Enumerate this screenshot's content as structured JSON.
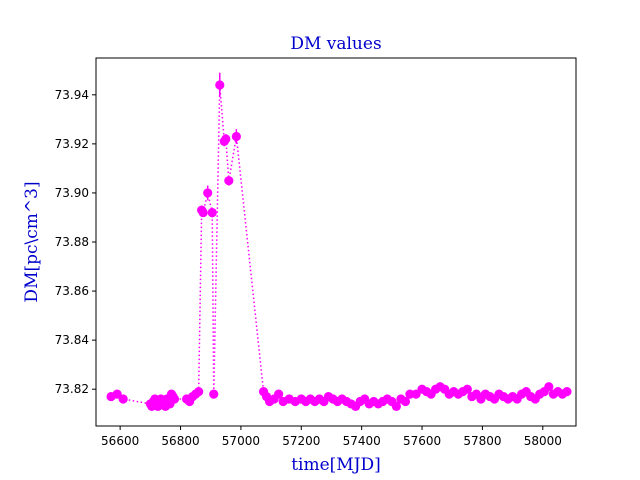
{
  "chart_data": {
    "type": "scatter",
    "title": "DM values",
    "xlabel": "time[MJD]",
    "ylabel": "DM[pc\\cm^3]",
    "xlim": [
      56520,
      58110
    ],
    "ylim": [
      73.805,
      73.955
    ],
    "xticks": [
      56600,
      56800,
      57000,
      57200,
      57400,
      57600,
      57800,
      58000
    ],
    "yticks": [
      73.82,
      73.84,
      73.86,
      73.88,
      73.9,
      73.92,
      73.94
    ],
    "ytick_labels": [
      "73.82",
      "73.84",
      "73.86",
      "73.88",
      "73.90",
      "73.92",
      "73.94"
    ],
    "grid": false,
    "line_style": "dotted",
    "colors": {
      "series": "#ff00ff",
      "title": "#0000cc",
      "axis_label": "#0000cc",
      "axes": "#000000"
    },
    "series": [
      {
        "x": [
          56570,
          56590,
          56610,
          56700,
          56705,
          56710,
          56715,
          56720,
          56725,
          56730,
          56735,
          56740,
          56745,
          56750,
          56755,
          56760,
          56765,
          56770,
          56775,
          56780,
          56820,
          56830,
          56840,
          56850,
          56860,
          56870,
          56875,
          56890,
          56905,
          56910,
          56930,
          56945,
          56950,
          56960,
          56985,
          57075,
          57085,
          57095,
          57110,
          57125,
          57140,
          57160,
          57180,
          57200,
          57215,
          57230,
          57245,
          57260,
          57275,
          57290,
          57305,
          57320,
          57335,
          57350,
          57365,
          57380,
          57395,
          57410,
          57425,
          57440,
          57455,
          57470,
          57485,
          57500,
          57515,
          57530,
          57545,
          57560,
          57580,
          57600,
          57615,
          57630,
          57645,
          57660,
          57675,
          57690,
          57705,
          57720,
          57735,
          57750,
          57765,
          57780,
          57795,
          57810,
          57825,
          57840,
          57855,
          57870,
          57885,
          57900,
          57915,
          57930,
          57945,
          57960,
          57975,
          57990,
          58005,
          58020,
          58035,
          58050,
          58065,
          58080
        ],
        "y": [
          73.817,
          73.818,
          73.816,
          73.814,
          73.813,
          73.815,
          73.816,
          73.814,
          73.813,
          73.815,
          73.816,
          73.814,
          73.815,
          73.813,
          73.816,
          73.815,
          73.814,
          73.818,
          73.817,
          73.816,
          73.816,
          73.815,
          73.817,
          73.818,
          73.819,
          73.893,
          73.892,
          73.9,
          73.892,
          73.818,
          73.944,
          73.921,
          73.922,
          73.905,
          73.923,
          73.819,
          73.817,
          73.815,
          73.816,
          73.818,
          73.815,
          73.816,
          73.815,
          73.816,
          73.815,
          73.816,
          73.815,
          73.816,
          73.815,
          73.817,
          73.816,
          73.815,
          73.816,
          73.815,
          73.814,
          73.813,
          73.815,
          73.816,
          73.814,
          73.815,
          73.814,
          73.815,
          73.816,
          73.815,
          73.813,
          73.816,
          73.815,
          73.818,
          73.818,
          73.82,
          73.819,
          73.818,
          73.82,
          73.821,
          73.82,
          73.818,
          73.819,
          73.818,
          73.819,
          73.82,
          73.817,
          73.818,
          73.816,
          73.818,
          73.817,
          73.816,
          73.818,
          73.817,
          73.816,
          73.817,
          73.816,
          73.818,
          73.819,
          73.817,
          73.816,
          73.818,
          73.819,
          73.821,
          73.818,
          73.819,
          73.818,
          73.819
        ],
        "yerr": [
          0.001,
          0.001,
          0.001,
          0.001,
          0.001,
          0.001,
          0.001,
          0.001,
          0.001,
          0.001,
          0.001,
          0.001,
          0.001,
          0.001,
          0.001,
          0.001,
          0.001,
          0.001,
          0.001,
          0.001,
          0.001,
          0.001,
          0.001,
          0.001,
          0.001,
          0.001,
          0.001,
          0.003,
          0.002,
          0.001,
          0.005,
          0.002,
          0.002,
          0.002,
          0.003,
          0.001,
          0.001,
          0.001,
          0.001,
          0.001,
          0.001,
          0.001,
          0.001,
          0.001,
          0.001,
          0.001,
          0.001,
          0.001,
          0.001,
          0.001,
          0.001,
          0.001,
          0.001,
          0.001,
          0.001,
          0.001,
          0.001,
          0.001,
          0.001,
          0.001,
          0.001,
          0.001,
          0.001,
          0.001,
          0.001,
          0.001,
          0.001,
          0.001,
          0.001,
          0.001,
          0.001,
          0.001,
          0.001,
          0.001,
          0.001,
          0.001,
          0.001,
          0.001,
          0.001,
          0.001,
          0.001,
          0.001,
          0.001,
          0.001,
          0.001,
          0.001,
          0.001,
          0.001,
          0.001,
          0.001,
          0.001,
          0.001,
          0.001,
          0.001,
          0.001,
          0.001,
          0.001,
          0.001,
          0.001,
          0.001,
          0.001,
          0.001
        ]
      }
    ]
  }
}
